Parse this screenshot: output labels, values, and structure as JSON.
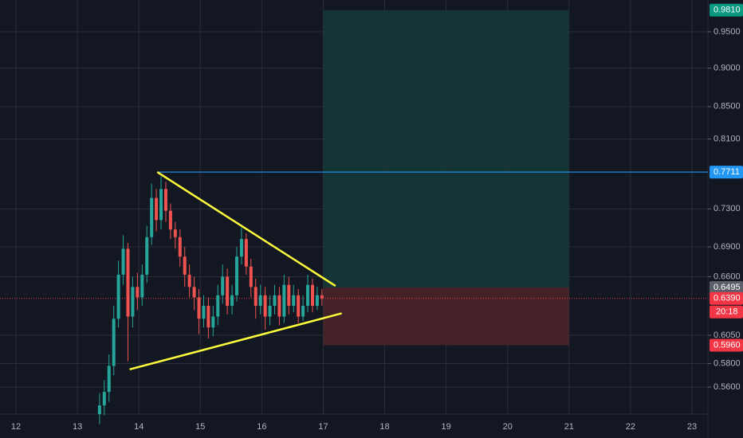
{
  "chart_data": {
    "type": "candlestick",
    "log_scale": true,
    "grid": true,
    "xlim": [
      11.74,
      23.26
    ],
    "xticks": [
      12,
      13,
      14,
      15,
      16,
      17,
      18,
      19,
      20,
      21,
      22,
      23
    ],
    "ylim": [
      0.538,
      0.996
    ],
    "yticks": [
      {
        "value": 0.56,
        "label": "0.5600"
      },
      {
        "value": 0.58,
        "label": "0.5800"
      },
      {
        "value": 0.605,
        "label": "0.6050"
      },
      {
        "value": 0.66,
        "label": "0.6600"
      },
      {
        "value": 0.69,
        "label": "0.6900"
      },
      {
        "value": 0.73,
        "label": "0.7300"
      },
      {
        "value": 0.81,
        "label": "0.8100"
      },
      {
        "value": 0.85,
        "label": "0.8500"
      },
      {
        "value": 0.9,
        "label": "0.9000"
      },
      {
        "value": 0.95,
        "label": "0.9500"
      }
    ],
    "up_color": "#26a69a",
    "down_color": "#ef5350",
    "candles": {
      "x": [
        13.36,
        13.437,
        13.514,
        13.591,
        13.668,
        13.745,
        13.822,
        13.899,
        13.976,
        14.053,
        14.13,
        14.207,
        14.284,
        14.361,
        14.438,
        14.515,
        14.592,
        14.669,
        14.746,
        14.823,
        14.9,
        14.977,
        15.054,
        15.131,
        15.208,
        15.285,
        15.362,
        15.439,
        15.516,
        15.593,
        15.67,
        15.747,
        15.824,
        15.901,
        15.978,
        16.055,
        16.132,
        16.209,
        16.286,
        16.363,
        16.44,
        16.517,
        16.594,
        16.671,
        16.748,
        16.825,
        16.902,
        16.979
      ],
      "open": [
        0.538,
        0.545,
        0.556,
        0.578,
        0.62,
        0.662,
        0.688,
        0.622,
        0.65,
        0.64,
        0.662,
        0.7,
        0.742,
        0.718,
        0.752,
        0.728,
        0.708,
        0.7,
        0.68,
        0.662,
        0.65,
        0.64,
        0.62,
        0.632,
        0.612,
        0.622,
        0.642,
        0.66,
        0.632,
        0.642,
        0.68,
        0.698,
        0.67,
        0.65,
        0.632,
        0.642,
        0.622,
        0.632,
        0.642,
        0.622,
        0.652,
        0.632,
        0.642,
        0.622,
        0.632,
        0.652,
        0.632,
        0.642
      ],
      "high": [
        0.555,
        0.566,
        0.588,
        0.632,
        0.676,
        0.702,
        0.694,
        0.66,
        0.664,
        0.672,
        0.712,
        0.758,
        0.752,
        0.766,
        0.76,
        0.736,
        0.716,
        0.708,
        0.69,
        0.672,
        0.66,
        0.648,
        0.642,
        0.64,
        0.632,
        0.652,
        0.672,
        0.668,
        0.652,
        0.69,
        0.71,
        0.704,
        0.678,
        0.658,
        0.652,
        0.65,
        0.642,
        0.652,
        0.65,
        0.662,
        0.66,
        0.652,
        0.648,
        0.642,
        0.662,
        0.658,
        0.65,
        0.648
      ],
      "low": [
        0.53,
        0.537,
        0.548,
        0.57,
        0.612,
        0.652,
        0.582,
        0.612,
        0.628,
        0.632,
        0.654,
        0.692,
        0.706,
        0.708,
        0.716,
        0.698,
        0.688,
        0.67,
        0.65,
        0.64,
        0.628,
        0.606,
        0.612,
        0.602,
        0.604,
        0.614,
        0.634,
        0.624,
        0.624,
        0.636,
        0.672,
        0.662,
        0.64,
        0.62,
        0.624,
        0.61,
        0.614,
        0.624,
        0.614,
        0.616,
        0.624,
        0.626,
        0.616,
        0.618,
        0.626,
        0.626,
        0.628,
        0.632
      ],
      "close": [
        0.545,
        0.556,
        0.578,
        0.62,
        0.662,
        0.688,
        0.622,
        0.65,
        0.64,
        0.662,
        0.7,
        0.742,
        0.718,
        0.752,
        0.728,
        0.708,
        0.7,
        0.68,
        0.662,
        0.65,
        0.64,
        0.62,
        0.632,
        0.612,
        0.622,
        0.642,
        0.66,
        0.632,
        0.642,
        0.68,
        0.698,
        0.67,
        0.65,
        0.632,
        0.642,
        0.622,
        0.632,
        0.642,
        0.622,
        0.652,
        0.632,
        0.642,
        0.622,
        0.632,
        0.652,
        0.632,
        0.642,
        0.639
      ]
    },
    "trend_lines": [
      {
        "x1": 14.3,
        "y1": 0.7711,
        "x2": 17.2,
        "y2": 0.651,
        "color": "#ffff3b"
      },
      {
        "x1": 13.85,
        "y1": 0.575,
        "x2": 17.3,
        "y2": 0.625,
        "color": "#ffff3b"
      }
    ],
    "horizontal_line": {
      "x_start": 14.3,
      "value": 0.7711,
      "color": "#2196f3"
    },
    "position": {
      "x_start": 17.0,
      "x_end": 21.0,
      "entry": 0.6495,
      "target": 0.981,
      "stop": 0.596,
      "profit_color": "#163a3a",
      "loss_color": "#4a2328"
    },
    "current_price": {
      "value": 0.639,
      "color": "#f23645"
    },
    "price_labels": [
      {
        "value": 0.981,
        "label": "0.9810",
        "color": "#089981"
      },
      {
        "value": 0.7711,
        "label": "0.7711",
        "color": "#2196f3"
      },
      {
        "value": 0.6495,
        "label": "0.6495",
        "color": "#5d606b"
      },
      {
        "value": 0.639,
        "label": "0.6390",
        "color": "#f23645"
      },
      {
        "value": 0.596,
        "label": "0.5960",
        "color": "#f23645"
      }
    ],
    "countdown": "20:18"
  }
}
